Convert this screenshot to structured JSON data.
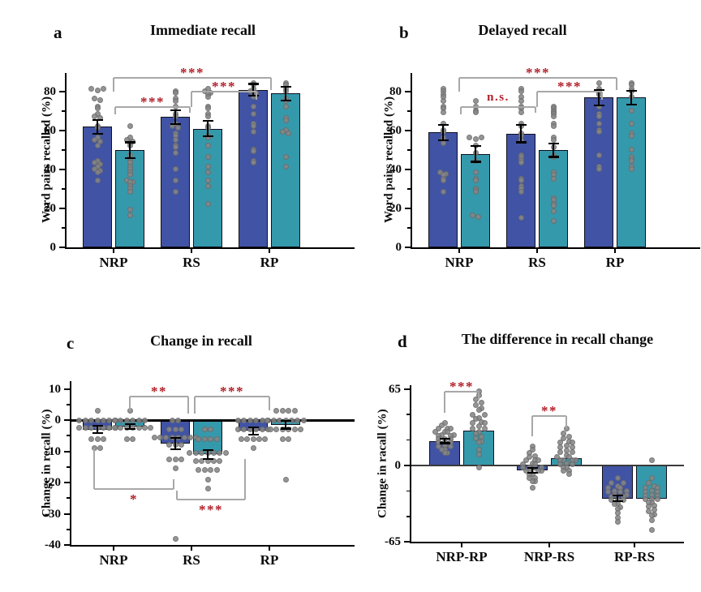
{
  "chart_data": [
    {
      "type": "bar",
      "panel": "a",
      "title": "Immediate recall",
      "ylabel": "Word pairs recalled (%)",
      "ylim": [
        0,
        88
      ],
      "yticks": [
        0,
        20,
        40,
        60,
        80
      ],
      "yticks_minor": [
        10,
        30,
        50,
        70
      ],
      "categories": [
        "NRP",
        "RS",
        "RP"
      ],
      "grid": false,
      "legend": "none",
      "zero_line": false,
      "series": [
        {
          "name": "blue-bars",
          "color": "#4053A4",
          "means": [
            62,
            67,
            81
          ],
          "sems": [
            3.5,
            3.5,
            3
          ],
          "points": [
            [
              81,
              81,
              81,
              76,
              76,
              72,
              71,
              68,
              67,
              67,
              62,
              61,
              56,
              55,
              55,
              52,
              44,
              43,
              43,
              41,
              40,
              40,
              38,
              34
            ],
            [
              80,
              79,
              76,
              75,
              72,
              68,
              67,
              63,
              62,
              62,
              58,
              57,
              55,
              52,
              51,
              48,
              40,
              34,
              28
            ],
            [
              84,
              83,
              81,
              80,
              80,
              78,
              77,
              72,
              68,
              63,
              62,
              59,
              50,
              49,
              44,
              43
            ]
          ]
        },
        {
          "name": "teal-bars",
          "color": "#3599AC",
          "means": [
            50,
            61,
            79
          ],
          "sems": [
            4,
            4,
            3.5
          ],
          "points": [
            [
              62,
              56,
              55,
              55,
              53,
              52,
              47,
              44,
              43,
              41,
              40,
              38,
              37,
              34,
              34,
              33,
              31,
              30,
              28,
              19,
              16
            ],
            [
              81,
              80,
              80,
              78,
              77,
              72,
              71,
              68,
              67,
              62,
              61,
              57,
              56,
              52,
              46,
              41,
              38,
              34,
              31,
              22
            ],
            [
              84,
              83,
              81,
              80,
              76,
              75,
              72,
              66,
              65,
              60,
              59,
              59,
              46,
              41
            ]
          ]
        }
      ],
      "significance": [
        {
          "label": "***",
          "y": 87,
          "side": "top",
          "x1": {
            "cat": 0,
            "anchor": "mid",
            "dx": 0
          },
          "x2": {
            "cat": 2,
            "anchor": "mid",
            "dx": 2
          },
          "d1": 7,
          "d2": 6
        },
        {
          "label": "***",
          "y": 80,
          "side": "top",
          "x1": {
            "cat": 1,
            "anchor": "mid",
            "dx": 0
          },
          "x2": {
            "cat": 2,
            "anchor": "mid",
            "dx": -16
          },
          "d1": 8,
          "d2": 4
        },
        {
          "label": "***",
          "y": 72,
          "side": "top",
          "x1": {
            "cat": 0,
            "anchor": "mid",
            "dx": 2
          },
          "x2": {
            "cat": 1,
            "anchor": "mid",
            "dx": -2
          },
          "d1": 3.5,
          "d2": 3
        }
      ]
    },
    {
      "type": "bar",
      "panel": "b",
      "title": "Delayed recall",
      "ylabel": "Word pairs recalled (%)",
      "ylim": [
        0,
        88
      ],
      "yticks": [
        0,
        20,
        40,
        60,
        80
      ],
      "yticks_minor": [
        10,
        30,
        50,
        70
      ],
      "categories": [
        "NRP",
        "RS",
        "RP"
      ],
      "grid": false,
      "legend": "none",
      "zero_line": false,
      "series": [
        {
          "name": "blue-bars",
          "color": "#4053A4",
          "means": [
            59,
            58.5,
            77
          ],
          "sems": [
            4,
            4.5,
            4
          ],
          "points": [
            [
              81,
              80,
              78,
              77,
              75,
              72,
              71,
              69,
              63,
              60,
              59,
              56,
              55,
              53,
              38,
              38,
              37,
              35,
              34,
              28
            ],
            [
              81,
              80,
              77,
              75,
              72,
              71,
              69,
              63,
              62,
              58,
              57,
              55,
              47,
              46,
              45,
              44,
              43,
              35,
              34,
              31,
              30,
              28,
              15
            ],
            [
              84,
              81,
              80,
              79,
              78,
              72,
              68,
              67,
              63,
              60,
              59,
              47,
              41,
              40
            ]
          ]
        },
        {
          "name": "teal-bars",
          "color": "#3599AC",
          "means": [
            48,
            50,
            77
          ],
          "sems": [
            4,
            3.5,
            3.5
          ],
          "points": [
            [
              75,
              72,
              70,
              69,
              56,
              56,
              56,
              52,
              48,
              44,
              38,
              35,
              34,
              30,
              29,
              28,
              16,
              16
            ],
            [
              72,
              71,
              70,
              69,
              68,
              67,
              63,
              62,
              56,
              55,
              51,
              47,
              46,
              38,
              37,
              35,
              25,
              24,
              22,
              21,
              18,
              13
            ],
            [
              84,
              83,
              81,
              80,
              77,
              70,
              63,
              58,
              57,
              50,
              46,
              45,
              44,
              41,
              40
            ]
          ]
        }
      ],
      "significance": [
        {
          "label": "***",
          "y": 87,
          "side": "top",
          "x1": {
            "cat": 0,
            "anchor": "mid",
            "dx": 0
          },
          "x2": {
            "cat": 2,
            "anchor": "mid",
            "dx": 2
          },
          "d1": 7,
          "d2": 6
        },
        {
          "label": "***",
          "y": 80,
          "side": "top",
          "x1": {
            "cat": 1,
            "anchor": "mid",
            "dx": 0
          },
          "x2": {
            "cat": 2,
            "anchor": "mid",
            "dx": -16
          },
          "d1": 8,
          "d2": 4
        },
        {
          "label": "n.s.",
          "y": 72,
          "side": "top",
          "x1": {
            "cat": 0,
            "anchor": "mid",
            "dx": 2
          },
          "x2": {
            "cat": 1,
            "anchor": "mid",
            "dx": -2
          },
          "d1": 3.5,
          "d2": 3
        }
      ]
    },
    {
      "type": "bar",
      "panel": "c",
      "title": "Change in recall",
      "ylabel": "Change in recall (%)",
      "ylim": [
        -40,
        12
      ],
      "yticks": [
        10,
        0,
        -10,
        -20,
        -30,
        -40
      ],
      "yticks_minor": [
        5,
        -5,
        -15,
        -25,
        -35
      ],
      "categories": [
        "NRP",
        "RS",
        "RP"
      ],
      "grid": false,
      "legend": "none",
      "zero_line": true,
      "series": [
        {
          "name": "blue-bars",
          "color": "#4053A4",
          "means": [
            -3,
            -7.5,
            -3.5
          ],
          "sems": [
            1.2,
            1.8,
            1.2
          ],
          "points": [
            [
              3,
              0,
              0,
              0,
              0,
              0,
              0,
              0,
              -2.5,
              -2.5,
              -2.5,
              -2.5,
              -2.5,
              -2.5,
              -2.5,
              -6,
              -6,
              -6,
              -9,
              -9
            ],
            [
              0,
              0,
              -3,
              -3,
              -3,
              -5.5,
              -5.5,
              -5.5,
              -5.5,
              -5.5,
              -5.5,
              -5.5,
              -5.5,
              -8,
              -8,
              -8,
              -12.5,
              -12.5,
              -12.5,
              -15.5,
              -38
            ],
            [
              0,
              0,
              0,
              0,
              0,
              0,
              -3,
              -3,
              -3,
              -3,
              -3,
              -3,
              -6,
              -6,
              -6,
              -6,
              -6,
              -9
            ]
          ]
        },
        {
          "name": "teal-bars",
          "color": "#3599AC",
          "means": [
            -2,
            -11,
            -1.5
          ],
          "sems": [
            0.8,
            1.5,
            1.2
          ],
          "points": [
            [
              3,
              0,
              0,
              0,
              0,
              0,
              0,
              -2.5,
              -2.5,
              -2.5,
              -2.5,
              -2.5,
              -2.5,
              -2.5,
              -2.5,
              -6,
              -6
            ],
            [
              -3,
              -3,
              -6,
              -6,
              -6,
              -6,
              -10.5,
              -10.5,
              -10.5,
              -10.5,
              -10.5,
              -10.5,
              -10.5,
              -13,
              -13,
              -13,
              -13,
              -13,
              -16,
              -16,
              -16,
              -16,
              -19,
              -22
            ],
            [
              3,
              3,
              3,
              3,
              0,
              0,
              0,
              0,
              0,
              0,
              0,
              -3,
              -3,
              -3,
              -3,
              -3,
              -3,
              -6,
              -6,
              -19
            ]
          ]
        }
      ],
      "significance": [
        {
          "label": "**",
          "y": 7.5,
          "side": "top",
          "x1": {
            "cat": 0,
            "anchor": "teal",
            "dx": 0
          },
          "x2": {
            "cat": 1,
            "anchor": "mid",
            "dx": -4
          },
          "d1": 4.5,
          "d2": 5.5
        },
        {
          "label": "***",
          "y": 7.5,
          "side": "top",
          "x1": {
            "cat": 1,
            "anchor": "mid",
            "dx": 4
          },
          "x2": {
            "cat": 2,
            "anchor": "mid",
            "dx": 0
          },
          "d1": 5.5,
          "d2": 4.5
        },
        {
          "label": "*",
          "y": -22,
          "side": "bottom",
          "x1": {
            "cat": 0,
            "anchor": "blue",
            "dx": -4
          },
          "x2": {
            "cat": 1,
            "anchor": "blue",
            "dx": -2
          },
          "d1": 13,
          "d2": 3
        },
        {
          "label": "***",
          "y": -25.5,
          "side": "bottom",
          "x1": {
            "cat": 1,
            "anchor": "blue",
            "dx": 2
          },
          "x2": {
            "cat": 2,
            "anchor": "blue",
            "dx": -10
          },
          "d1": 3,
          "d2": 13
        }
      ]
    },
    {
      "type": "bar",
      "panel": "d",
      "title": "The difference in recall change",
      "ylabel": "Change in racall (%)",
      "ylim": [
        -65,
        70
      ],
      "yticks": [
        65,
        0,
        -65
      ],
      "yticks_minor": [
        43.3,
        21.7,
        -21.7,
        -43.3
      ],
      "categories": [
        "NRP-RP",
        "NRP-RS",
        "RP-RS"
      ],
      "grid": false,
      "legend": "none",
      "zero_line": true,
      "series": [
        {
          "name": "blue-bars",
          "color": "#4053A4",
          "means": [
            21,
            -4,
            -28
          ],
          "sems": [
            2,
            2,
            2.5
          ],
          "points": [
            [
              35,
              33,
              33,
              30,
              30,
              30,
              27,
              27,
              27,
              27,
              24,
              24,
              24,
              21,
              21,
              21,
              18,
              18,
              18,
              15,
              15,
              15,
              12,
              12,
              9
            ],
            [
              15,
              12,
              9,
              9,
              6,
              6,
              3,
              3,
              3,
              0,
              0,
              0,
              0,
              -3,
              -3,
              -3,
              -3,
              -6,
              -6,
              -6,
              -9,
              -9,
              -12,
              -12,
              -15,
              -20
            ],
            [
              -12,
              -16,
              -16,
              -16,
              -20,
              -20,
              -20,
              -20,
              -24,
              -24,
              -24,
              -24,
              -28,
              -28,
              -28,
              -31,
              -31,
              -31,
              -34,
              -34,
              -38,
              -42,
              -46,
              -49
            ]
          ]
        },
        {
          "name": "teal-bars",
          "color": "#3599AC",
          "means": [
            30,
            6,
            -28
          ],
          "sems": [
            null,
            null,
            null
          ],
          "points": [
            [
              62,
              58,
              55,
              55,
              50,
              50,
              46,
              42,
              42,
              42,
              38,
              38,
              35,
              35,
              35,
              30,
              30,
              30,
              26,
              26,
              22,
              22,
              18,
              12,
              8,
              -3
            ],
            [
              30,
              26,
              26,
              22,
              22,
              18,
              18,
              18,
              14,
              14,
              14,
              10,
              10,
              10,
              6,
              6,
              6,
              6,
              3,
              3,
              3,
              0,
              0,
              0,
              -3,
              -3,
              -6,
              -6
            ],
            [
              3,
              -12,
              -16,
              -16,
              -20,
              -20,
              -20,
              -24,
              -24,
              -24,
              -27,
              -27,
              -27,
              -30,
              -30,
              -30,
              -33,
              -33,
              -36,
              -36,
              -40,
              -40,
              -44,
              -48,
              -56
            ]
          ]
        }
      ],
      "significance": [
        {
          "label": "***",
          "y": 63,
          "side": "top",
          "x1": {
            "cat": 0,
            "anchor": "blue",
            "dx": 0
          },
          "x2": {
            "cat": 0,
            "anchor": "teal",
            "dx": 0
          },
          "d1": 18,
          "d2": 7
        },
        {
          "label": "**",
          "y": 42,
          "side": "top",
          "x1": {
            "cat": 1,
            "anchor": "blue",
            "dx": 0
          },
          "x2": {
            "cat": 1,
            "anchor": "teal",
            "dx": 0
          },
          "d1": 17,
          "d2": 10
        }
      ]
    }
  ],
  "style": {
    "significance_color": "#B01E28",
    "bracket_color": "#A8A8A8",
    "axis_color": "#000000",
    "dot_color": "#868686",
    "bar_colors": [
      "#4053A4",
      "#3599AC"
    ]
  }
}
